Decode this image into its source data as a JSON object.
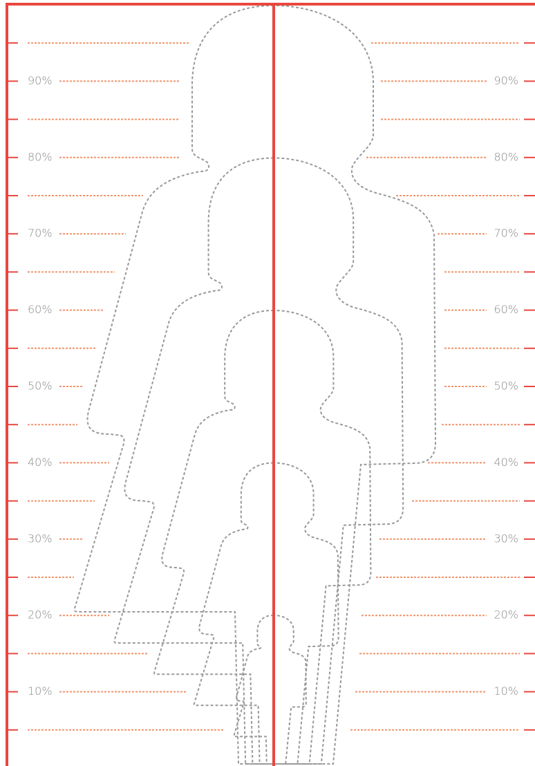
{
  "scale": {
    "labels": [
      "90%",
      "80%",
      "70%",
      "60%",
      "50%",
      "40%",
      "30%",
      "20%",
      "10%"
    ]
  }
}
